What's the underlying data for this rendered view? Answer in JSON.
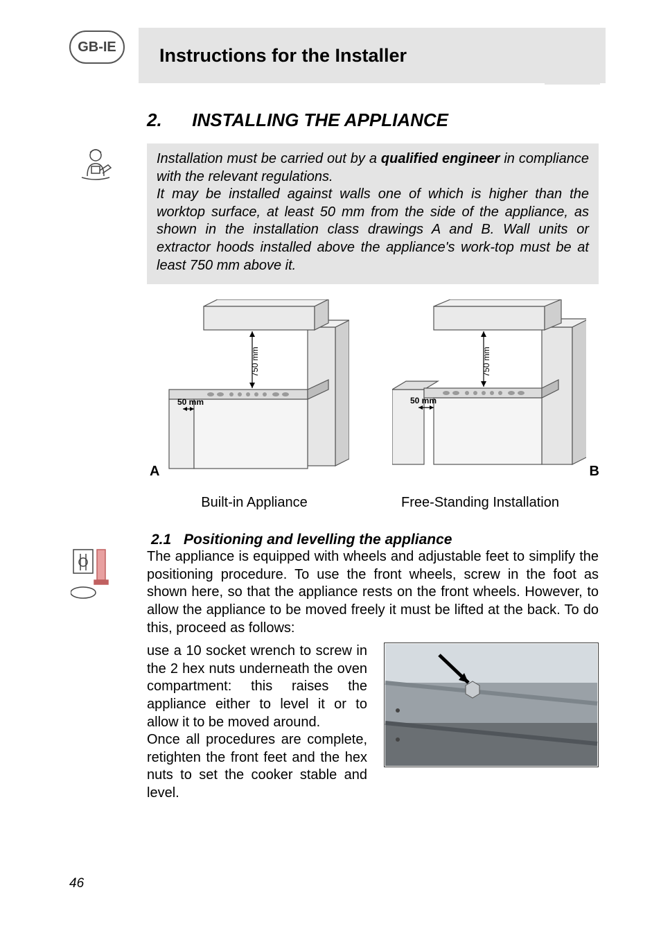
{
  "badge": {
    "label": "GB-IE"
  },
  "header": {
    "title": "Instructions for the Installer"
  },
  "section": {
    "number": "2.",
    "title": "INSTALLING THE APPLIANCE"
  },
  "caution": {
    "text_before_bold": "Installation must be carried out by a ",
    "bold": "qualified engineer",
    "text_after_bold": " in compliance with the relevant regulations.\nIt may be installed against walls one of which is higher than the worktop surface, at least 50 mm from the side of the appliance, as shown in the installation class drawings A and B. Wall units or extractor hoods installed above the appliance's work-top must be at least 750 mm above it."
  },
  "diagrams": {
    "a_label": "A",
    "b_label": "B",
    "vert_dim": "750 mm",
    "horiz_dim": "50 mm",
    "caption_a": "Built-in Appliance",
    "caption_b": "Free-Standing Installation",
    "stroke": "#555555",
    "fill_light": "#f3f3f3",
    "fill_mid": "#cfcfcf",
    "fill_dark": "#9a9a9a"
  },
  "subsection": {
    "number": "2.1",
    "title": "Positioning and levelling the appliance"
  },
  "para1": "The appliance is equipped with wheels and adjustable feet to simplify the positioning procedure. To use the front wheels, screw in the foot as shown here, so that the appliance rests on the front wheels. However, to allow the appliance to be moved freely it must be lifted at the back. To do this, proceed as follows:",
  "para2": "use a 10 socket wrench to screw in the 2 hex nuts underneath the oven compartment: this raises the appliance either to level it or to allow it to be moved around.\nOnce all procedures are complete, retighten the front feet and the hex nuts to set the cooker stable and level.",
  "panel_photo": {
    "border": "#333333",
    "band_light": "#bfc4c8",
    "band_dark": "#6a6f73",
    "arrow": "#000000"
  },
  "page_number": "46"
}
